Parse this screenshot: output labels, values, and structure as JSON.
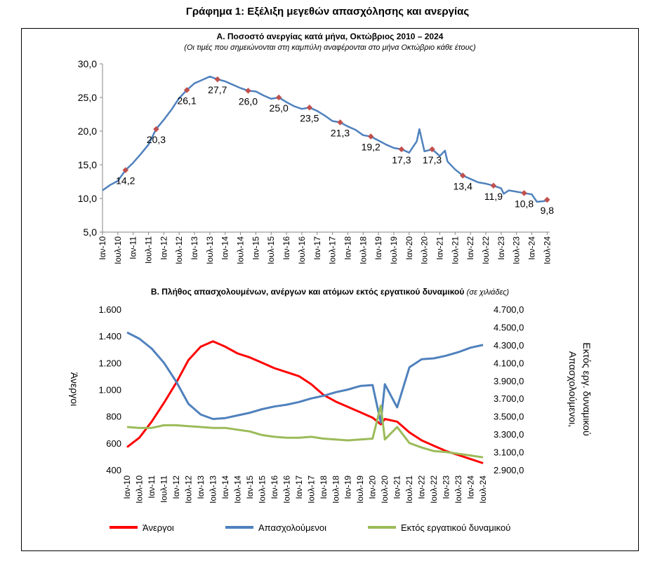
{
  "figure_title": "Γράφημα 1: Εξέλιξη μεγεθών απασχόλησης και ανεργίας",
  "chart_data": [
    {
      "type": "line",
      "title": "Α. Ποσοστό ανεργίας κατά μήνα, Οκτώβριος 2010 – 2024",
      "subtitle": "(Οι τιμές που σημειώνονται στη καμπύλη αναφέρονται στο μήνα Οκτώβριο κάθε έτους)",
      "x_range": [
        "Ιαν-10",
        "Ιουλ-24"
      ],
      "x_ticks": [
        "Ιαν-10",
        "Ιουλ-10",
        "Ιαν-11",
        "Ιουλ-11",
        "Ιαν-12",
        "Ιουλ-12",
        "Ιαν-13",
        "Ιουλ-13",
        "Ιαν-14",
        "Ιουλ-14",
        "Ιαν-15",
        "Ιουλ-15",
        "Ιαν-16",
        "Ιουλ-16",
        "Ιαν-17",
        "Ιουλ-17",
        "Ιαν-18",
        "Ιουλ-18",
        "Ιαν-19",
        "Ιουλ-19",
        "Ιαν-20",
        "Ιουλ-20",
        "Ιαν-21",
        "Ιουλ-21",
        "Ιαν-22",
        "Ιουλ-22",
        "Ιαν-23",
        "Ιουλ-23",
        "Ιαν-24",
        "Ιουλ-24"
      ],
      "y_ticks": [
        "5,0",
        "10,0",
        "15,0",
        "20,0",
        "25,0",
        "30,0"
      ],
      "ylim": [
        5,
        30
      ],
      "line_color": "#4F81BD",
      "marker_color": "#C0504D",
      "series": [
        {
          "points": [
            [
              "2010-01",
              11.2
            ],
            [
              "2010-04",
              12.0
            ],
            [
              "2010-07",
              12.6
            ],
            [
              "2010-10",
              14.2
            ],
            [
              "2011-01",
              15.3
            ],
            [
              "2011-04",
              16.6
            ],
            [
              "2011-07",
              18.0
            ],
            [
              "2011-10",
              20.3
            ],
            [
              "2012-01",
              21.7
            ],
            [
              "2012-04",
              23.2
            ],
            [
              "2012-07",
              24.9
            ],
            [
              "2012-10",
              26.1
            ],
            [
              "2013-01",
              27.1
            ],
            [
              "2013-04",
              27.6
            ],
            [
              "2013-07",
              28.1
            ],
            [
              "2013-10",
              27.7
            ],
            [
              "2014-01",
              27.4
            ],
            [
              "2014-04",
              26.9
            ],
            [
              "2014-07",
              26.4
            ],
            [
              "2014-10",
              26.0
            ],
            [
              "2015-01",
              25.9
            ],
            [
              "2015-04",
              25.3
            ],
            [
              "2015-07",
              24.8
            ],
            [
              "2015-10",
              25.0
            ],
            [
              "2016-01",
              24.3
            ],
            [
              "2016-04",
              23.7
            ],
            [
              "2016-07",
              23.3
            ],
            [
              "2016-10",
              23.5
            ],
            [
              "2017-01",
              23.0
            ],
            [
              "2017-04",
              22.3
            ],
            [
              "2017-07",
              21.5
            ],
            [
              "2017-10",
              21.3
            ],
            [
              "2018-01",
              20.7
            ],
            [
              "2018-04",
              20.2
            ],
            [
              "2018-07",
              19.4
            ],
            [
              "2018-10",
              19.2
            ],
            [
              "2019-01",
              18.6
            ],
            [
              "2019-04",
              18.0
            ],
            [
              "2019-07",
              17.5
            ],
            [
              "2019-10",
              17.3
            ],
            [
              "2020-01",
              16.8
            ],
            [
              "2020-04",
              18.5
            ],
            [
              "2020-05",
              20.3
            ],
            [
              "2020-07",
              17.0
            ],
            [
              "2020-10",
              17.3
            ],
            [
              "2021-01",
              16.3
            ],
            [
              "2021-03",
              17.1
            ],
            [
              "2021-04",
              15.5
            ],
            [
              "2021-07",
              14.3
            ],
            [
              "2021-10",
              13.4
            ],
            [
              "2022-01",
              12.9
            ],
            [
              "2022-04",
              12.4
            ],
            [
              "2022-07",
              12.2
            ],
            [
              "2022-10",
              11.9
            ],
            [
              "2023-01",
              11.5
            ],
            [
              "2023-02",
              10.7
            ],
            [
              "2023-04",
              11.2
            ],
            [
              "2023-07",
              11.0
            ],
            [
              "2023-10",
              10.8
            ],
            [
              "2024-01",
              10.6
            ],
            [
              "2024-03",
              9.5
            ],
            [
              "2024-06",
              9.6
            ],
            [
              "2024-07",
              9.8
            ]
          ]
        }
      ],
      "labeled_points": [
        {
          "x": "2010-10",
          "value": "14,2"
        },
        {
          "x": "2011-10",
          "value": "20,3"
        },
        {
          "x": "2012-10",
          "value": "26,1"
        },
        {
          "x": "2013-10",
          "value": "27,7"
        },
        {
          "x": "2014-10",
          "value": "26,0"
        },
        {
          "x": "2015-10",
          "value": "25,0"
        },
        {
          "x": "2016-10",
          "value": "23,5"
        },
        {
          "x": "2017-10",
          "value": "21,3"
        },
        {
          "x": "2018-10",
          "value": "19,2"
        },
        {
          "x": "2019-10",
          "value": "17,3"
        },
        {
          "x": "2020-10",
          "value": "17,3"
        },
        {
          "x": "2021-10",
          "value": "13,4"
        },
        {
          "x": "2022-10",
          "value": "11,9"
        },
        {
          "x": "2023-10",
          "value": "10,8"
        },
        {
          "x": "2024-07",
          "value": "9,8"
        }
      ]
    },
    {
      "type": "line",
      "title": "Β. Πλήθος απασχολουμένων, ανέργων και ατόμων εκτός εργατικού δυναμικού",
      "title_note": "(σε χιλιάδες)",
      "ylabel_left": "Άνεργοι",
      "ylabel_right_1": "Απασχολούμενοι,",
      "ylabel_right_2": "Εκτός εργ. δυναμικού",
      "y_ticks_left": [
        "400",
        "600",
        "800",
        "1.000",
        "1.200",
        "1.400",
        "1.600"
      ],
      "y_ticks_right": [
        "2.900,0",
        "3.100,0",
        "3.300,0",
        "3.500,0",
        "3.700,0",
        "3.900,0",
        "4.100,0",
        "4.300,0",
        "4.500,0",
        "4.700,0"
      ],
      "ylim_left": [
        400,
        1600
      ],
      "ylim_right": [
        2900,
        4700
      ],
      "x_ticks": [
        "Ιαν-10",
        "Ιουλ-10",
        "Ιαν-11",
        "Ιουλ-11",
        "Ιαν-12",
        "Ιουλ-12",
        "Ιαν-13",
        "Ιουλ-13",
        "Ιαν-14",
        "Ιουλ-14",
        "Ιαν-15",
        "Ιουλ-15",
        "Ιαν-16",
        "Ιουλ-16",
        "Ιαν-17",
        "Ιουλ-17",
        "Ιαν-18",
        "Ιουλ-18",
        "Ιαν-19",
        "Ιουλ-19",
        "Ιαν-20",
        "Ιουλ-20",
        "Ιαν-21",
        "Ιουλ-21",
        "Ιαν-22",
        "Ιουλ-22",
        "Ιαν-23",
        "Ιουλ-23",
        "Ιαν-24",
        "Ιουλ-24"
      ],
      "series": [
        {
          "name": "Άνεργοι",
          "axis": "left",
          "color": "#FF0000",
          "points": [
            [
              "2010-01",
              570
            ],
            [
              "2010-07",
              640
            ],
            [
              "2011-01",
              760
            ],
            [
              "2011-07",
              900
            ],
            [
              "2012-01",
              1050
            ],
            [
              "2012-07",
              1220
            ],
            [
              "2013-01",
              1320
            ],
            [
              "2013-07",
              1360
            ],
            [
              "2014-01",
              1320
            ],
            [
              "2014-07",
              1270
            ],
            [
              "2015-01",
              1240
            ],
            [
              "2015-07",
              1200
            ],
            [
              "2016-01",
              1160
            ],
            [
              "2016-07",
              1130
            ],
            [
              "2017-01",
              1100
            ],
            [
              "2017-07",
              1040
            ],
            [
              "2018-01",
              960
            ],
            [
              "2018-07",
              910
            ],
            [
              "2019-01",
              870
            ],
            [
              "2019-07",
              830
            ],
            [
              "2020-01",
              790
            ],
            [
              "2020-05",
              740
            ],
            [
              "2020-07",
              780
            ],
            [
              "2021-01",
              760
            ],
            [
              "2021-07",
              680
            ],
            [
              "2022-01",
              620
            ],
            [
              "2022-07",
              580
            ],
            [
              "2023-01",
              540
            ],
            [
              "2023-07",
              510
            ],
            [
              "2024-01",
              480
            ],
            [
              "2024-07",
              450
            ]
          ]
        },
        {
          "name": "Απασχολούμενοι",
          "axis": "right",
          "color": "#4F81BD",
          "points": [
            [
              "2010-01",
              4440
            ],
            [
              "2010-07",
              4370
            ],
            [
              "2011-01",
              4260
            ],
            [
              "2011-07",
              4100
            ],
            [
              "2012-01",
              3890
            ],
            [
              "2012-07",
              3640
            ],
            [
              "2013-01",
              3520
            ],
            [
              "2013-07",
              3470
            ],
            [
              "2014-01",
              3480
            ],
            [
              "2014-07",
              3510
            ],
            [
              "2015-01",
              3540
            ],
            [
              "2015-07",
              3580
            ],
            [
              "2016-01",
              3610
            ],
            [
              "2016-07",
              3630
            ],
            [
              "2017-01",
              3660
            ],
            [
              "2017-07",
              3700
            ],
            [
              "2018-01",
              3730
            ],
            [
              "2018-07",
              3770
            ],
            [
              "2019-01",
              3800
            ],
            [
              "2019-07",
              3840
            ],
            [
              "2020-01",
              3850
            ],
            [
              "2020-05",
              3430
            ],
            [
              "2020-07",
              3860
            ],
            [
              "2021-01",
              3600
            ],
            [
              "2021-07",
              4050
            ],
            [
              "2022-01",
              4140
            ],
            [
              "2022-07",
              4150
            ],
            [
              "2023-01",
              4180
            ],
            [
              "2023-07",
              4220
            ],
            [
              "2024-01",
              4270
            ],
            [
              "2024-07",
              4300
            ]
          ]
        },
        {
          "name": "Εκτός εργατικού δυναμικού",
          "axis": "right",
          "color": "#9BBB59",
          "points": [
            [
              "2010-01",
              3380
            ],
            [
              "2010-07",
              3370
            ],
            [
              "2011-01",
              3370
            ],
            [
              "2011-07",
              3400
            ],
            [
              "2012-01",
              3400
            ],
            [
              "2012-07",
              3390
            ],
            [
              "2013-01",
              3380
            ],
            [
              "2013-07",
              3370
            ],
            [
              "2014-01",
              3370
            ],
            [
              "2014-07",
              3350
            ],
            [
              "2015-01",
              3330
            ],
            [
              "2015-07",
              3290
            ],
            [
              "2016-01",
              3270
            ],
            [
              "2016-07",
              3260
            ],
            [
              "2017-01",
              3260
            ],
            [
              "2017-07",
              3270
            ],
            [
              "2018-01",
              3250
            ],
            [
              "2018-07",
              3240
            ],
            [
              "2019-01",
              3230
            ],
            [
              "2019-07",
              3240
            ],
            [
              "2020-01",
              3250
            ],
            [
              "2020-05",
              3620
            ],
            [
              "2020-07",
              3240
            ],
            [
              "2021-01",
              3380
            ],
            [
              "2021-07",
              3200
            ],
            [
              "2022-01",
              3150
            ],
            [
              "2022-07",
              3110
            ],
            [
              "2023-01",
              3100
            ],
            [
              "2023-07",
              3080
            ],
            [
              "2024-01",
              3060
            ],
            [
              "2024-07",
              3040
            ]
          ]
        }
      ],
      "legend_position": "bottom"
    }
  ]
}
